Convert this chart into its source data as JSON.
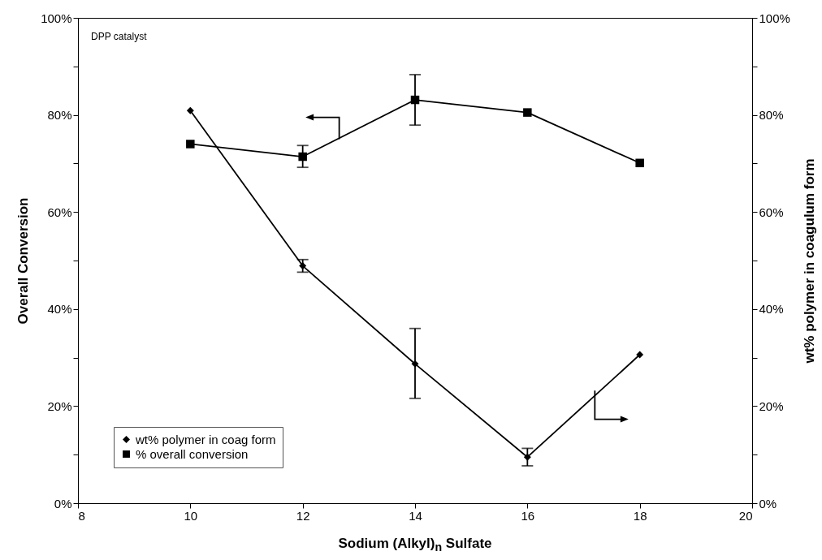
{
  "chart_data": {
    "type": "line",
    "xlabel": "Sodium (Alkyl)$_{n}$ Sulfate",
    "ylabel": "Overall Conversion",
    "y2label": "wt% polymer in coagulum form",
    "annotations": [
      "DPP catalyst"
    ],
    "x": [
      10,
      12,
      14,
      16,
      18
    ],
    "series": [
      {
        "name": "wt% polymer in coag form",
        "color": "#000000",
        "axis": "y2",
        "marker": "diamond",
        "values": [
          80.9,
          48.9,
          28.7,
          9.5,
          30.6
        ],
        "errors": [
          null,
          [
            47.6,
            50.2
          ],
          [
            21.6,
            36.0
          ],
          [
            7.7,
            11.3
          ],
          null
        ]
      },
      {
        "name": "% overall conversion",
        "color": "#000000",
        "axis": "y",
        "marker": "square",
        "values": [
          74.0,
          71.4,
          83.1,
          80.5,
          70.1
        ],
        "errors": [
          null,
          [
            69.2,
            73.7
          ],
          [
            77.9,
            88.3
          ],
          null,
          null
        ]
      }
    ],
    "xlim": [
      8,
      20
    ],
    "xticks": [
      8,
      10,
      12,
      14,
      16,
      18,
      20
    ],
    "ylim": [
      0,
      100
    ],
    "yticks": [
      {
        "value": 0,
        "label": "0%"
      },
      {
        "value": 10,
        "label": null
      },
      {
        "value": 20,
        "label": "20%"
      },
      {
        "value": 30,
        "label": null
      },
      {
        "value": 40,
        "label": "40%"
      },
      {
        "value": 50,
        "label": null
      },
      {
        "value": 60,
        "label": "60%"
      },
      {
        "value": 70,
        "label": null
      },
      {
        "value": 80,
        "label": "80%"
      },
      {
        "value": 90,
        "label": null
      },
      {
        "value": 100,
        "label": "100%"
      }
    ],
    "y2lim": [
      0,
      100
    ],
    "y2ticks": [
      {
        "value": 0,
        "label": "0%"
      },
      {
        "value": 10,
        "label": null
      },
      {
        "value": 20,
        "label": "20%"
      },
      {
        "value": 30,
        "label": null
      },
      {
        "value": 40,
        "label": "40%"
      },
      {
        "value": 50,
        "label": null
      },
      {
        "value": 60,
        "label": "60%"
      },
      {
        "value": 70,
        "label": null
      },
      {
        "value": 80,
        "label": "80%"
      },
      {
        "value": 90,
        "label": null
      },
      {
        "value": 100,
        "label": "100%"
      }
    ],
    "grid": false,
    "legend": "bottom left",
    "line_style": "solid"
  }
}
